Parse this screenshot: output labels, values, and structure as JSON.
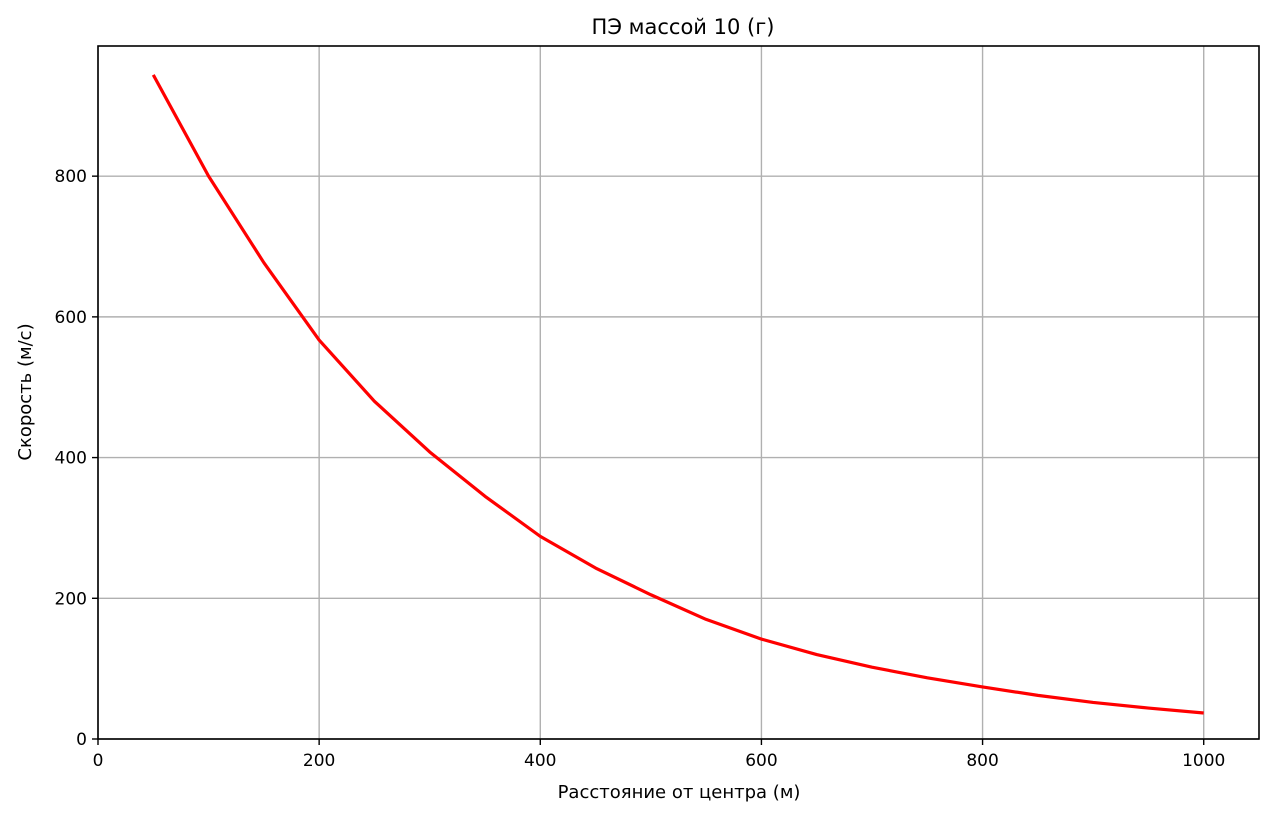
{
  "chart_data": {
    "type": "line",
    "title": "ПЭ массой 10 (г)",
    "xlabel": "Расстояние от центра (м)",
    "ylabel": "Скорость (м/с)",
    "xlim": [
      0,
      1050
    ],
    "ylim": [
      0,
      985
    ],
    "xticks": [
      0,
      200,
      400,
      600,
      800,
      1000
    ],
    "yticks": [
      0,
      200,
      400,
      600,
      800
    ],
    "grid": true,
    "series": [
      {
        "color": "#ff0000",
        "x": [
          50,
          100,
          150,
          200,
          250,
          300,
          350,
          400,
          450,
          500,
          550,
          600,
          650,
          700,
          750,
          800,
          850,
          900,
          950,
          1000
        ],
        "y": [
          944,
          800,
          677,
          567,
          480,
          408,
          345,
          288,
          243,
          205,
          170,
          142,
          120,
          102,
          87,
          74,
          62,
          52,
          44,
          37
        ]
      }
    ]
  }
}
